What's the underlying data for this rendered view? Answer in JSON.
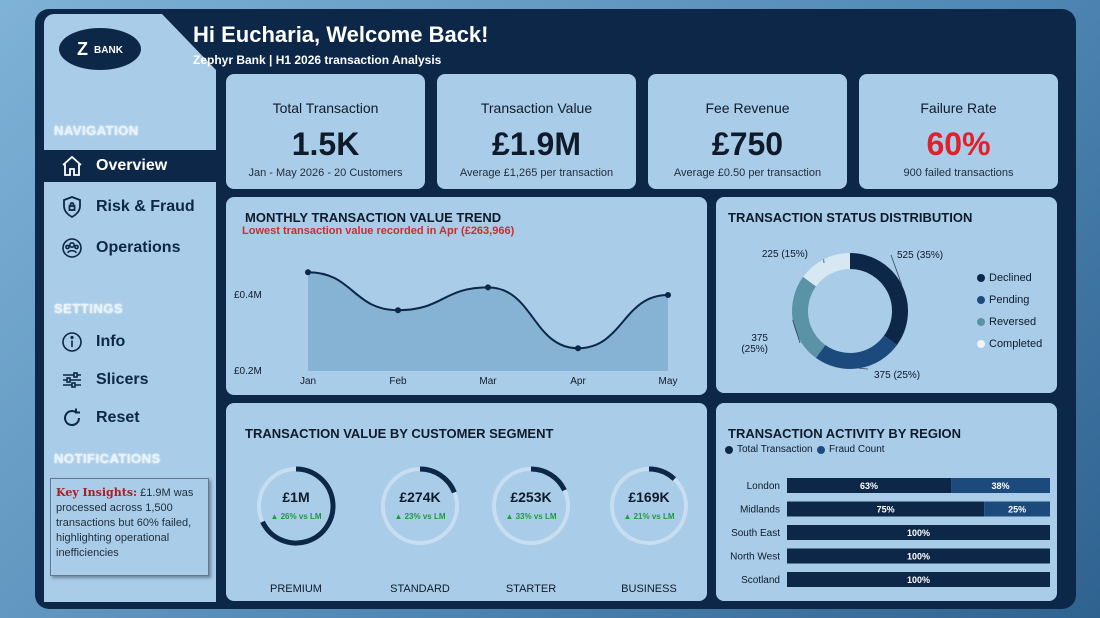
{
  "header": {
    "title": "Hi Eucharia, Welcome Back!",
    "subtitle": "Zephyr Bank | H1 2026 transaction Analysis"
  },
  "logo": {
    "mark": "Z",
    "text": "BANK"
  },
  "sidebar": {
    "navigation_label": "NAVIGATION",
    "nav_items": [
      {
        "label": "Overview",
        "icon": "home-icon",
        "active": true
      },
      {
        "label": "Risk & Fraud",
        "icon": "shield-icon",
        "active": false
      },
      {
        "label": "Operations",
        "icon": "people-icon",
        "active": false
      }
    ],
    "settings_label": "SETTINGS",
    "settings_items": [
      {
        "label": "Info",
        "icon": "info-icon"
      },
      {
        "label": "Slicers",
        "icon": "sliders-icon"
      },
      {
        "label": "Reset",
        "icon": "reset-icon"
      }
    ],
    "notifications_label": "NOTIFICATIONS",
    "insight": {
      "key": "Key Insights:",
      "text": "£1.9M was processed across 1,500 transactions but 60% failed, highlighting operational inefficiencies"
    }
  },
  "kpis": [
    {
      "title": "Total Transaction",
      "value": "1.5K",
      "sub": "Jan - May 2026 - 20 Customers",
      "red": false
    },
    {
      "title": "Transaction Value",
      "value": "£1.9M",
      "sub": "Average £1,265 per transaction",
      "red": false
    },
    {
      "title": "Fee Revenue",
      "value": "£750",
      "sub": "Average £0.50 per transaction",
      "red": false
    },
    {
      "title": "Failure Rate",
      "value": "60%",
      "sub": "900 failed transactions",
      "red": true
    }
  ],
  "trend": {
    "title": "MONTHLY TRANSACTION VALUE TREND",
    "note": "Lowest transaction value recorded in Apr (£263,966)"
  },
  "status": {
    "title": "TRANSACTION STATUS DISTRIBUTION"
  },
  "segment": {
    "title": "TRANSACTION VALUE BY CUSTOMER SEGMENT"
  },
  "region": {
    "title": "TRANSACTION ACTIVITY BY REGION"
  },
  "colors": {
    "navy": "#0d2748",
    "card": "#a9cce8",
    "accent_red": "#e0202a",
    "declined": "#0d2748",
    "pending": "#1c4a7c",
    "reversed": "#5a93a5",
    "completed": "#d8e8f3",
    "fraud": "#1c4a7c",
    "green": "#1e9d3a"
  },
  "chart_data": [
    {
      "type": "area",
      "categories": [
        "Jan",
        "Feb",
        "Mar",
        "Apr",
        "May"
      ],
      "values": [
        0.46,
        0.36,
        0.42,
        0.26,
        0.4
      ],
      "yticks": [
        "£0.4M",
        "£0.2M"
      ],
      "ytick_values": [
        0.4,
        0.2
      ],
      "ylim": [
        0.2,
        0.5
      ]
    },
    {
      "type": "pie",
      "categories": [
        "Declined",
        "Pending",
        "Reversed",
        "Completed"
      ],
      "values": [
        525,
        375,
        375,
        225
      ],
      "labels": [
        "525 (35%)",
        "375 (25%)",
        "375 (25%)",
        "225 (15%)"
      ]
    },
    {
      "type": "pie",
      "categories": [
        "PREMIUM",
        "STANDARD",
        "STARTER",
        "BUSINESS"
      ],
      "values": [
        "£1M",
        "£274K",
        "£253K",
        "£169K"
      ],
      "fractions": [
        0.68,
        0.19,
        0.18,
        0.12
      ],
      "changes": [
        "▲ 26% vs LM",
        "▲ 23% vs LM",
        "▲ 33% vs LM",
        "▲ 21% vs LM"
      ]
    },
    {
      "type": "bar",
      "categories": [
        "London",
        "Midlands",
        "South East",
        "North West",
        "Scotland"
      ],
      "series": [
        {
          "name": "Total Transaction",
          "values": [
            63,
            75,
            100,
            100,
            100
          ]
        },
        {
          "name": "Fraud Count",
          "values": [
            38,
            25,
            0,
            0,
            0
          ]
        }
      ],
      "labels": [
        [
          "63%",
          "38%"
        ],
        [
          "75%",
          "25%"
        ],
        [
          "100%",
          ""
        ],
        [
          "100%",
          ""
        ],
        [
          "100%",
          ""
        ]
      ]
    }
  ]
}
